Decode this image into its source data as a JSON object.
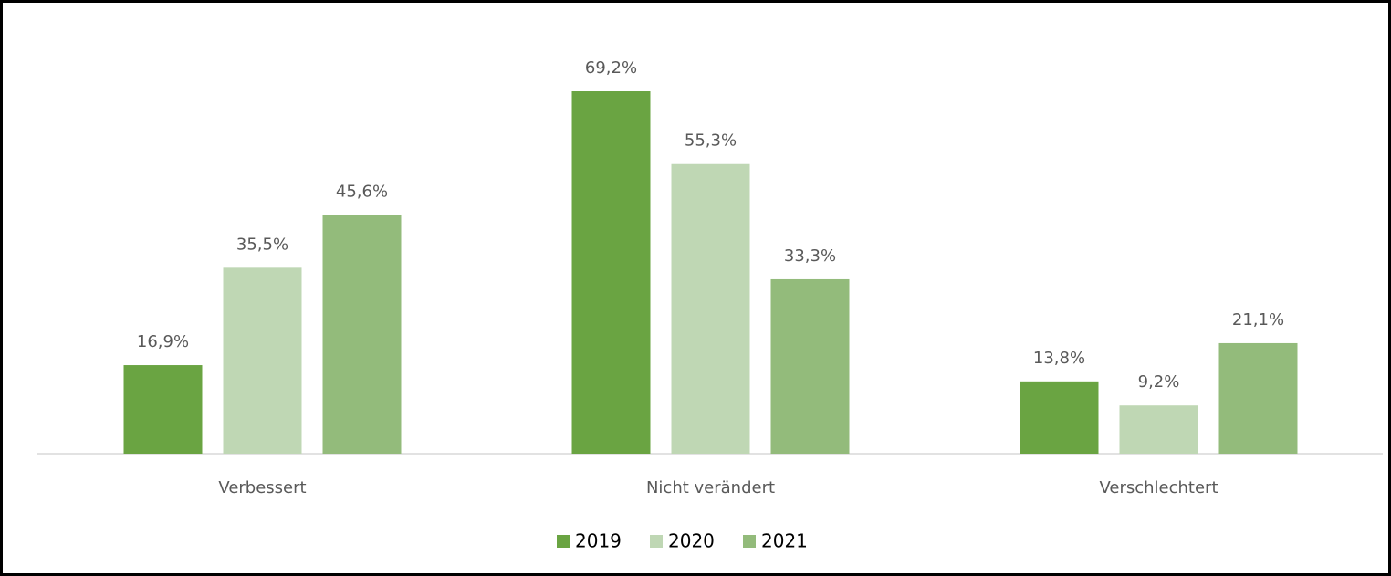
{
  "chart_data": {
    "type": "bar",
    "categories": [
      "Verbessert",
      "Nicht verändert",
      "Verschlechtert"
    ],
    "series": [
      {
        "name": "2019",
        "color": "#6aa442",
        "values": [
          16.9,
          69.2,
          13.8
        ],
        "value_labels": [
          "16,9%",
          "69,2%",
          "13,8%"
        ]
      },
      {
        "name": "2020",
        "color": "#bfd7b4",
        "values": [
          35.5,
          55.3,
          9.2
        ],
        "value_labels": [
          "35,5%",
          "55,3%",
          "9,2%"
        ]
      },
      {
        "name": "2021",
        "color": "#93bb7b",
        "values": [
          45.6,
          33.3,
          21.1
        ],
        "value_labels": [
          "45,6%",
          "33,3%",
          "21,1%"
        ]
      }
    ],
    "legend": "bottom"
  }
}
